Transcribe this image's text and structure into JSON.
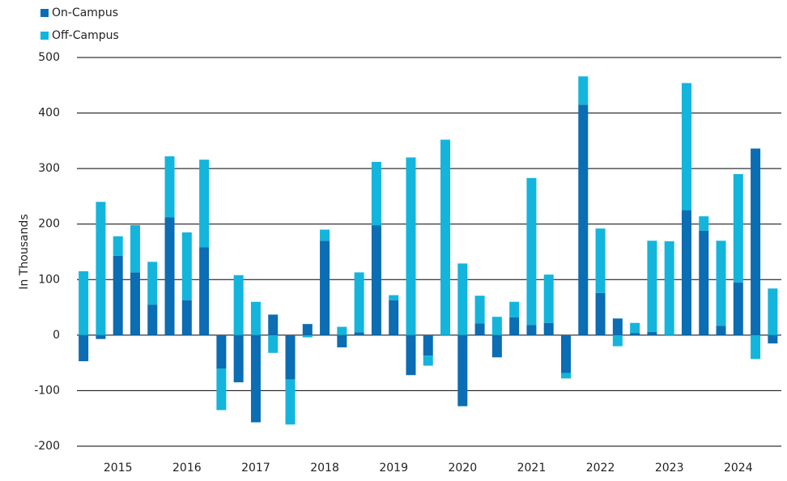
{
  "chart_data": {
    "type": "bar",
    "stacked": true,
    "y_label": "In Thousands",
    "categories": [
      null,
      null,
      "2015",
      null,
      null,
      null,
      "2016",
      null,
      null,
      null,
      "2017",
      null,
      null,
      null,
      "2018",
      null,
      null,
      null,
      "2019",
      null,
      null,
      null,
      "2020",
      null,
      null,
      null,
      "2021",
      null,
      null,
      null,
      "2022",
      null,
      null,
      null,
      "2023",
      null,
      null,
      null,
      "2024",
      null,
      null
    ],
    "series": [
      {
        "name": "On-Campus",
        "color": "#0b6db3",
        "values": [
          -47,
          -7,
          143,
          113,
          55,
          212,
          63,
          158,
          -60,
          -85,
          -157,
          37,
          -80,
          20,
          170,
          -22,
          5,
          198,
          63,
          -72,
          -37,
          0,
          -128,
          21,
          -40,
          32,
          18,
          22,
          -68,
          415,
          76,
          30,
          4,
          6,
          0,
          225,
          188,
          17,
          95,
          336,
          -15
        ]
      },
      {
        "name": "Off-Campus",
        "color": "#13b5dd",
        "values": [
          115,
          240,
          35,
          85,
          77,
          110,
          122,
          158,
          -75,
          108,
          60,
          -32,
          -81,
          -4,
          20,
          15,
          108,
          114,
          9,
          320,
          -18,
          352,
          129,
          50,
          33,
          28,
          265,
          87,
          -10,
          51,
          116,
          -20,
          18,
          164,
          169,
          229,
          26,
          153,
          195,
          -43,
          84
        ]
      }
    ],
    "ylim": [
      -200,
      500
    ],
    "yticks": [
      -200,
      -100,
      0,
      100,
      200,
      300,
      400,
      500
    ],
    "grid": true,
    "legend": "top-left"
  }
}
